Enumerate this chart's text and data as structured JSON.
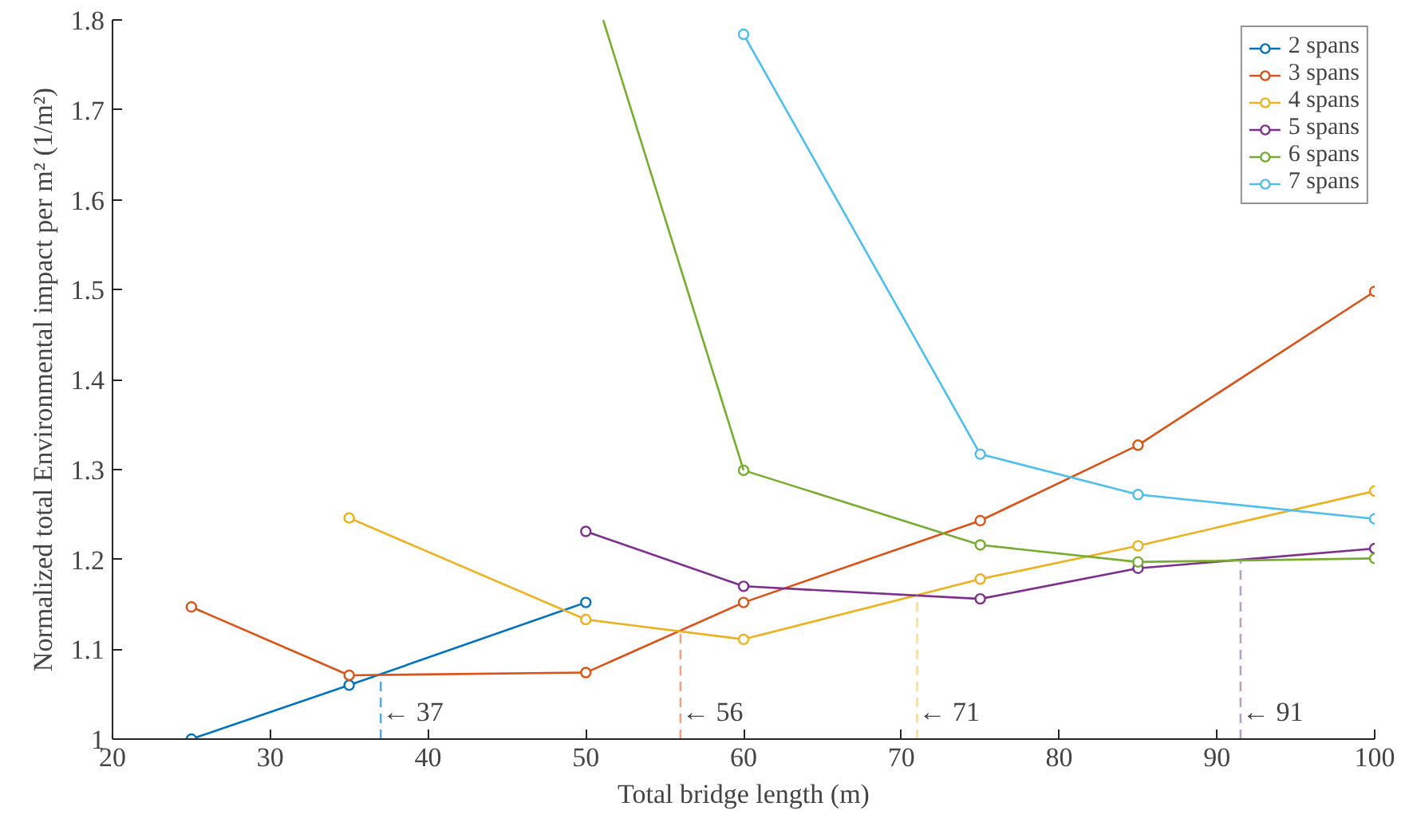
{
  "chart_data": {
    "type": "line",
    "xlabel": "Total bridge length (m)",
    "ylabel": "Normalized total Environmental impact per m² (1/m²)",
    "xlim": [
      20,
      100
    ],
    "ylim": [
      1,
      1.8
    ],
    "xticks": [
      20,
      30,
      40,
      50,
      60,
      70,
      80,
      90,
      100
    ],
    "yticks": [
      1,
      1.1,
      1.2,
      1.3,
      1.4,
      1.5,
      1.6,
      1.7,
      1.8
    ],
    "marker": "circle",
    "legend": "top right",
    "grid": false,
    "series": [
      {
        "name": "2 spans",
        "color": "#0072bd",
        "x": [
          25,
          35,
          50
        ],
        "values": [
          1.0,
          1.06,
          1.152
        ]
      },
      {
        "name": "3 spans",
        "color": "#d95319",
        "x": [
          25,
          35,
          50,
          60,
          75,
          85,
          100
        ],
        "values": [
          1.147,
          1.071,
          1.074,
          1.152,
          1.243,
          1.327,
          1.498
        ]
      },
      {
        "name": "4 spans",
        "color": "#edb120",
        "x": [
          35,
          50,
          60,
          75,
          85,
          100
        ],
        "values": [
          1.246,
          1.133,
          1.111,
          1.178,
          1.215,
          1.276
        ]
      },
      {
        "name": "5 spans",
        "color": "#7e2f8e",
        "x": [
          50,
          60,
          75,
          85,
          100
        ],
        "values": [
          1.231,
          1.17,
          1.156,
          1.19,
          1.212
        ]
      },
      {
        "name": "6 spans",
        "color": "#77ac30",
        "x": [
          60,
          75,
          85,
          100
        ],
        "values": [
          1.299,
          1.216,
          1.197,
          1.201
        ]
      },
      {
        "color": "#77ac30",
        "x": [
          51.1,
          60
        ],
        "values": [
          1.8,
          1.299
        ],
        "marker": "none"
      },
      {
        "name": "7 spans",
        "color": "#4dbeee",
        "x": [
          60,
          75,
          85,
          100
        ],
        "values": [
          1.784,
          1.317,
          1.272,
          1.245
        ]
      },
      {
        "color": "#5aa8e0",
        "x": [
          37,
          37
        ],
        "values": [
          1.0,
          1.071
        ],
        "marker": "none",
        "line_style": "dashed"
      },
      {
        "color": "#eca488",
        "x": [
          56,
          56
        ],
        "values": [
          1.0,
          1.12
        ],
        "marker": "none",
        "line_style": "dashed"
      },
      {
        "color": "#f6dca0",
        "x": [
          71,
          71
        ],
        "values": [
          1.0,
          1.16
        ],
        "marker": "none",
        "line_style": "dashed"
      },
      {
        "color": "#b9a0c8",
        "x": [
          91.5,
          91.5
        ],
        "values": [
          1.0,
          1.198
        ],
        "marker": "none",
        "line_style": "dashed"
      }
    ],
    "annotations": [
      {
        "text": "← 37",
        "x": 37,
        "y": 1.03
      },
      {
        "text": "← 56",
        "x": 56,
        "y": 1.03
      },
      {
        "text": "← 71",
        "x": 71,
        "y": 1.03
      },
      {
        "text": "← 91",
        "x": 91.5,
        "y": 1.03
      }
    ]
  }
}
